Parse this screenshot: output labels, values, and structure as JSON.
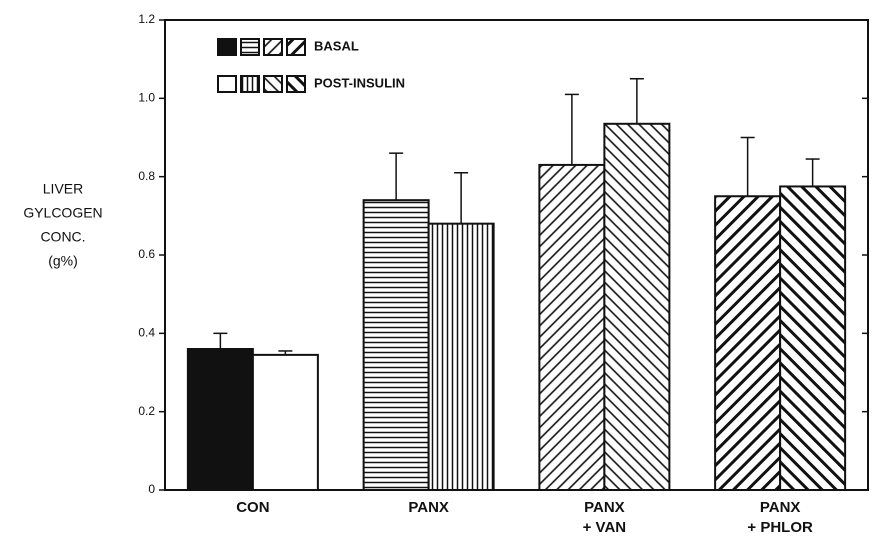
{
  "chart_data": {
    "type": "bar",
    "y_label": [
      "LIVER",
      "GYLCOGEN",
      "CONC.",
      "(g%)"
    ],
    "categories": [
      "CON",
      "PANX",
      "PANX\n+ VAN",
      "PANX\n+ PHLOR"
    ],
    "series": [
      {
        "name": "BASAL",
        "color": "#111111",
        "patterns": [
          "solid",
          "horizontal",
          "diagonal-up",
          "diagonal-up-bold"
        ],
        "values": [
          0.36,
          0.74,
          0.83,
          0.75
        ],
        "errors": [
          0.04,
          0.12,
          0.18,
          0.15
        ]
      },
      {
        "name": "POST-INSULIN",
        "color": "#111111",
        "patterns": [
          "none",
          "vertical",
          "diagonal-down",
          "diagonal-down-bold"
        ],
        "values": [
          0.345,
          0.68,
          0.935,
          0.775
        ],
        "errors": [
          0.01,
          0.13,
          0.115,
          0.07
        ]
      }
    ],
    "ylim": [
      0,
      1.2
    ],
    "yticks": [
      0,
      0.2,
      0.4,
      0.6,
      0.8,
      {
        "value": 1,
        "label": "1.0"
      },
      1.2
    ]
  }
}
